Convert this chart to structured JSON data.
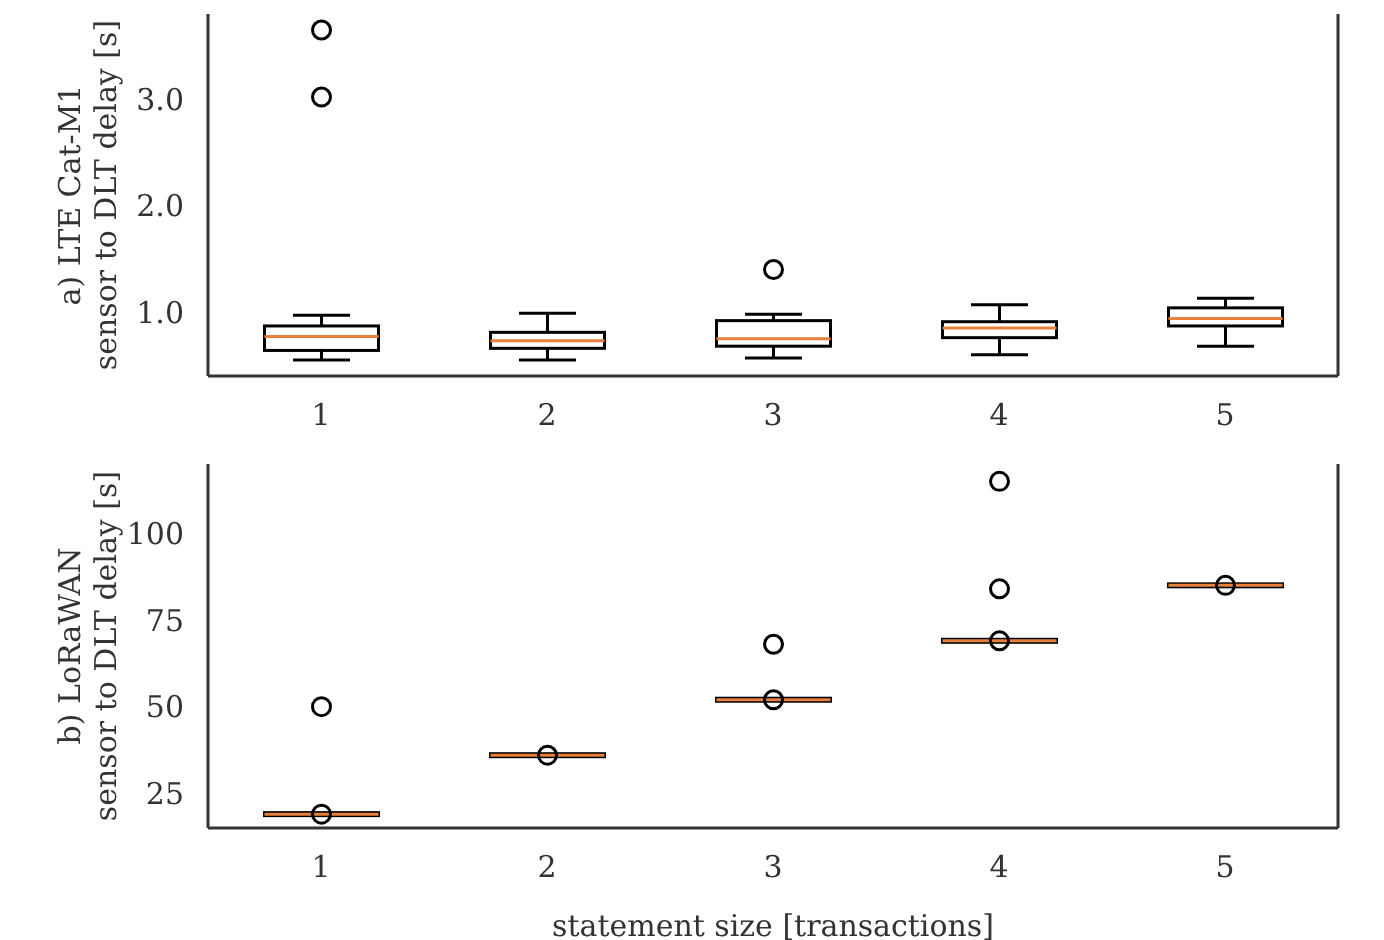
{
  "chart_data": [
    {
      "type": "box",
      "ylabel": "a) LTE Cat-M1\nsensor to DLT delay [s]",
      "categories": [
        "1",
        "2",
        "3",
        "4",
        "5"
      ],
      "ylim": [
        0.4,
        3.8
      ],
      "yticks": [
        {
          "value": 1,
          "label": "1.0"
        },
        {
          "value": 2,
          "label": "2.0"
        },
        {
          "value": 3,
          "label": "3.0"
        }
      ],
      "series": [
        {
          "color": "#000000",
          "boxes": [
            {
              "low": 0.55,
              "q1": 0.64,
              "median": 0.77,
              "q3": 0.87,
              "high": 0.97,
              "outliers": [
                3.02,
                3.65
              ]
            },
            {
              "low": 0.55,
              "q1": 0.66,
              "median": 0.73,
              "q3": 0.81,
              "high": 0.99
            },
            {
              "low": 0.57,
              "q1": 0.68,
              "median": 0.75,
              "q3": 0.92,
              "high": 0.98,
              "outliers": [
                1.4
              ]
            },
            {
              "low": 0.6,
              "q1": 0.76,
              "median": 0.85,
              "q3": 0.91,
              "high": 1.07
            },
            {
              "low": 0.68,
              "q1": 0.87,
              "median": 0.94,
              "q3": 1.04,
              "high": 1.13
            }
          ]
        }
      ]
    },
    {
      "type": "box",
      "xlabel": "statement size [transactions]",
      "ylabel": "b) LoRaWAN\nsensor to DLT delay [s]",
      "categories": [
        "1",
        "2",
        "3",
        "4",
        "5"
      ],
      "ylim": [
        15,
        120
      ],
      "yticks": [
        25,
        50,
        75,
        100
      ],
      "series": [
        {
          "color": "#000000",
          "boxes": [
            {
              "low": 19,
              "q1": 19,
              "median": 19,
              "q3": 19,
              "high": 19,
              "outliers": [
                19,
                50
              ]
            },
            {
              "low": 36,
              "q1": 36,
              "median": 36,
              "q3": 36,
              "high": 36,
              "outliers": [
                36
              ]
            },
            {
              "low": 52,
              "q1": 52,
              "median": 52,
              "q3": 52,
              "high": 52,
              "outliers": [
                52,
                68
              ]
            },
            {
              "low": 69,
              "q1": 69,
              "median": 69,
              "q3": 69,
              "high": 69,
              "outliers": [
                69,
                84,
                115
              ]
            },
            {
              "low": 85,
              "q1": 85,
              "median": 85,
              "q3": 85,
              "high": 85,
              "outliers": [
                85
              ]
            }
          ]
        }
      ]
    }
  ]
}
